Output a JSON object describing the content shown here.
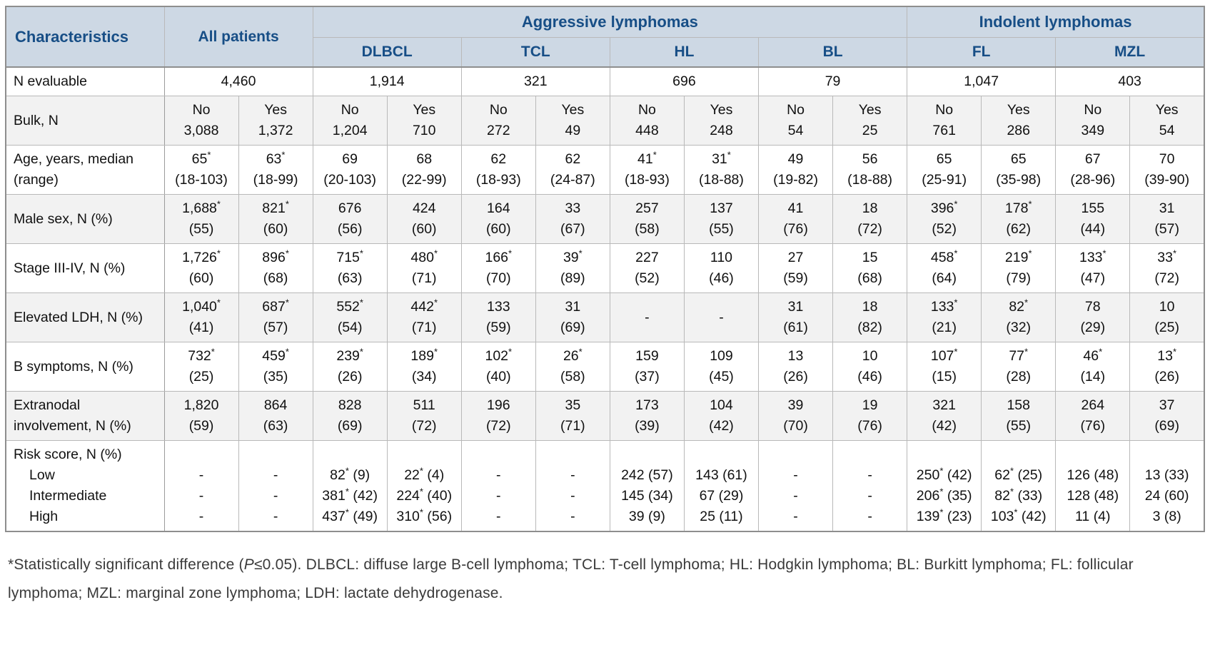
{
  "table": {
    "header": {
      "characteristics": "Characteristics",
      "all_patients": "All patients",
      "groups": [
        "Aggressive lymphomas",
        "Indolent lymphomas"
      ],
      "diseases": [
        "DLBCL",
        "TCL",
        "HL",
        "BL",
        "FL",
        "MZL"
      ]
    },
    "rows": [
      {
        "id": "n-evaluable",
        "type": "span2",
        "label": "N evaluable",
        "values": [
          "4,460",
          "1,914",
          "321",
          "696",
          "79",
          "1,047",
          "403"
        ]
      },
      {
        "id": "bulk",
        "type": "two-line",
        "label": "Bulk, N",
        "cells": [
          [
            "No",
            "3,088"
          ],
          [
            "Yes",
            "1,372"
          ],
          [
            "No",
            "1,204"
          ],
          [
            "Yes",
            "710"
          ],
          [
            "No",
            "272"
          ],
          [
            "Yes",
            "49"
          ],
          [
            "No",
            "448"
          ],
          [
            "Yes",
            "248"
          ],
          [
            "No",
            "54"
          ],
          [
            "Yes",
            "25"
          ],
          [
            "No",
            "761"
          ],
          [
            "Yes",
            "286"
          ],
          [
            "No",
            "349"
          ],
          [
            "Yes",
            "54"
          ]
        ]
      },
      {
        "id": "age",
        "type": "two-line",
        "label": "Age, years, median (range)",
        "cells": [
          [
            "65*",
            "(18-103)"
          ],
          [
            "63*",
            "(18-99)"
          ],
          [
            "69",
            "(20-103)"
          ],
          [
            "68",
            "(22-99)"
          ],
          [
            "62",
            "(18-93)"
          ],
          [
            "62",
            "(24-87)"
          ],
          [
            "41*",
            "(18-93)"
          ],
          [
            "31*",
            "(18-88)"
          ],
          [
            "49",
            "(19-82)"
          ],
          [
            "56",
            "(18-88)"
          ],
          [
            "65",
            "(25-91)"
          ],
          [
            "65",
            "(35-98)"
          ],
          [
            "67",
            "(28-96)"
          ],
          [
            "70",
            "(39-90)"
          ]
        ]
      },
      {
        "id": "male-sex",
        "type": "two-line",
        "label": "Male sex, N (%)",
        "cells": [
          [
            "1,688*",
            "(55)"
          ],
          [
            "821*",
            "(60)"
          ],
          [
            "676",
            "(56)"
          ],
          [
            "424",
            "(60)"
          ],
          [
            "164",
            "(60)"
          ],
          [
            "33",
            "(67)"
          ],
          [
            "257",
            "(58)"
          ],
          [
            "137",
            "(55)"
          ],
          [
            "41",
            "(76)"
          ],
          [
            "18",
            "(72)"
          ],
          [
            "396*",
            "(52)"
          ],
          [
            "178*",
            "(62)"
          ],
          [
            "155",
            "(44)"
          ],
          [
            "31",
            "(57)"
          ]
        ]
      },
      {
        "id": "stage",
        "type": "two-line",
        "label": "Stage III-IV, N (%)",
        "cells": [
          [
            "1,726*",
            "(60)"
          ],
          [
            "896*",
            "(68)"
          ],
          [
            "715*",
            "(63)"
          ],
          [
            "480*",
            "(71)"
          ],
          [
            "166*",
            "(70)"
          ],
          [
            "39*",
            "(89)"
          ],
          [
            "227",
            "(52)"
          ],
          [
            "110",
            "(46)"
          ],
          [
            "27",
            "(59)"
          ],
          [
            "15",
            "(68)"
          ],
          [
            "458*",
            "(64)"
          ],
          [
            "219*",
            "(79)"
          ],
          [
            "133*",
            "(47)"
          ],
          [
            "33*",
            "(72)"
          ]
        ]
      },
      {
        "id": "elevated-ldh",
        "type": "two-line",
        "label": "Elevated LDH, N (%)",
        "cells": [
          [
            "1,040*",
            "(41)"
          ],
          [
            "687*",
            "(57)"
          ],
          [
            "552*",
            "(54)"
          ],
          [
            "442*",
            "(71)"
          ],
          [
            "133",
            "(59)"
          ],
          [
            "31",
            "(69)"
          ],
          [
            "-",
            ""
          ],
          [
            "-",
            ""
          ],
          [
            "31",
            "(61)"
          ],
          [
            "18",
            "(82)"
          ],
          [
            "133*",
            "(21)"
          ],
          [
            "82*",
            "(32)"
          ],
          [
            "78",
            "(29)"
          ],
          [
            "10",
            "(25)"
          ]
        ]
      },
      {
        "id": "b-symptoms",
        "type": "two-line",
        "label": "B symptoms, N (%)",
        "cells": [
          [
            "732*",
            "(25)"
          ],
          [
            "459*",
            "(35)"
          ],
          [
            "239*",
            "(26)"
          ],
          [
            "189*",
            "(34)"
          ],
          [
            "102*",
            "(40)"
          ],
          [
            "26*",
            "(58)"
          ],
          [
            "159",
            "(37)"
          ],
          [
            "109",
            "(45)"
          ],
          [
            "13",
            "(26)"
          ],
          [
            "10",
            "(46)"
          ],
          [
            "107*",
            "(15)"
          ],
          [
            "77*",
            "(28)"
          ],
          [
            "46*",
            "(14)"
          ],
          [
            "13*",
            "(26)"
          ]
        ]
      },
      {
        "id": "extranodal",
        "type": "two-line",
        "label": "Extranodal involvement, N (%)",
        "cells": [
          [
            "1,820",
            "(59)"
          ],
          [
            "864",
            "(63)"
          ],
          [
            "828",
            "(69)"
          ],
          [
            "511",
            "(72)"
          ],
          [
            "196",
            "(72)"
          ],
          [
            "35",
            "(71)"
          ],
          [
            "173",
            "(39)"
          ],
          [
            "104",
            "(42)"
          ],
          [
            "39",
            "(70)"
          ],
          [
            "19",
            "(76)"
          ],
          [
            "321",
            "(42)"
          ],
          [
            "158",
            "(55)"
          ],
          [
            "264",
            "(76)"
          ],
          [
            "37",
            "(69)"
          ]
        ]
      },
      {
        "id": "risk-score",
        "type": "multi",
        "label": "Risk score, N (%)",
        "sub_labels": [
          "Low",
          "Intermediate",
          "High"
        ],
        "cells": [
          [
            "-",
            "-",
            "-"
          ],
          [
            "-",
            "-",
            "-"
          ],
          [
            "82* (9)",
            "381* (42)",
            "437* (49)"
          ],
          [
            "22* (4)",
            "224* (40)",
            "310* (56)"
          ],
          [
            "-",
            "-",
            "-"
          ],
          [
            "-",
            "-",
            "-"
          ],
          [
            "242 (57)",
            "145 (34)",
            "39 (9)"
          ],
          [
            "143 (61)",
            "67 (29)",
            "25 (11)"
          ],
          [
            "-",
            "-",
            "-"
          ],
          [
            "-",
            "-",
            "-"
          ],
          [
            "250* (42)",
            "206* (35)",
            "139* (23)"
          ],
          [
            "62* (25)",
            "82* (33)",
            "103* (42)"
          ],
          [
            "126 (48)",
            "128 (48)",
            "11 (4)"
          ],
          [
            "13 (33)",
            "24 (60)",
            "3 (8)"
          ]
        ]
      }
    ]
  },
  "footnote": {
    "pre": "*Statistically significant difference (",
    "italic": "P",
    "post": "≤0.05). DLBCL: diffuse large B-cell lymphoma; TCL: T-cell lymphoma; HL: Hodgkin lymphoma; BL: Burkitt lymphoma; FL: follicular lymphoma; MZL: marginal zone lymphoma; LDH: lactate dehydrogenase."
  },
  "colors": {
    "header_bg": "#cdd8e4",
    "header_text": "#174e86",
    "alt_row_bg": "#f2f2f2",
    "border_dark": "#8e8e8e",
    "border_light": "#b9b9b9"
  }
}
